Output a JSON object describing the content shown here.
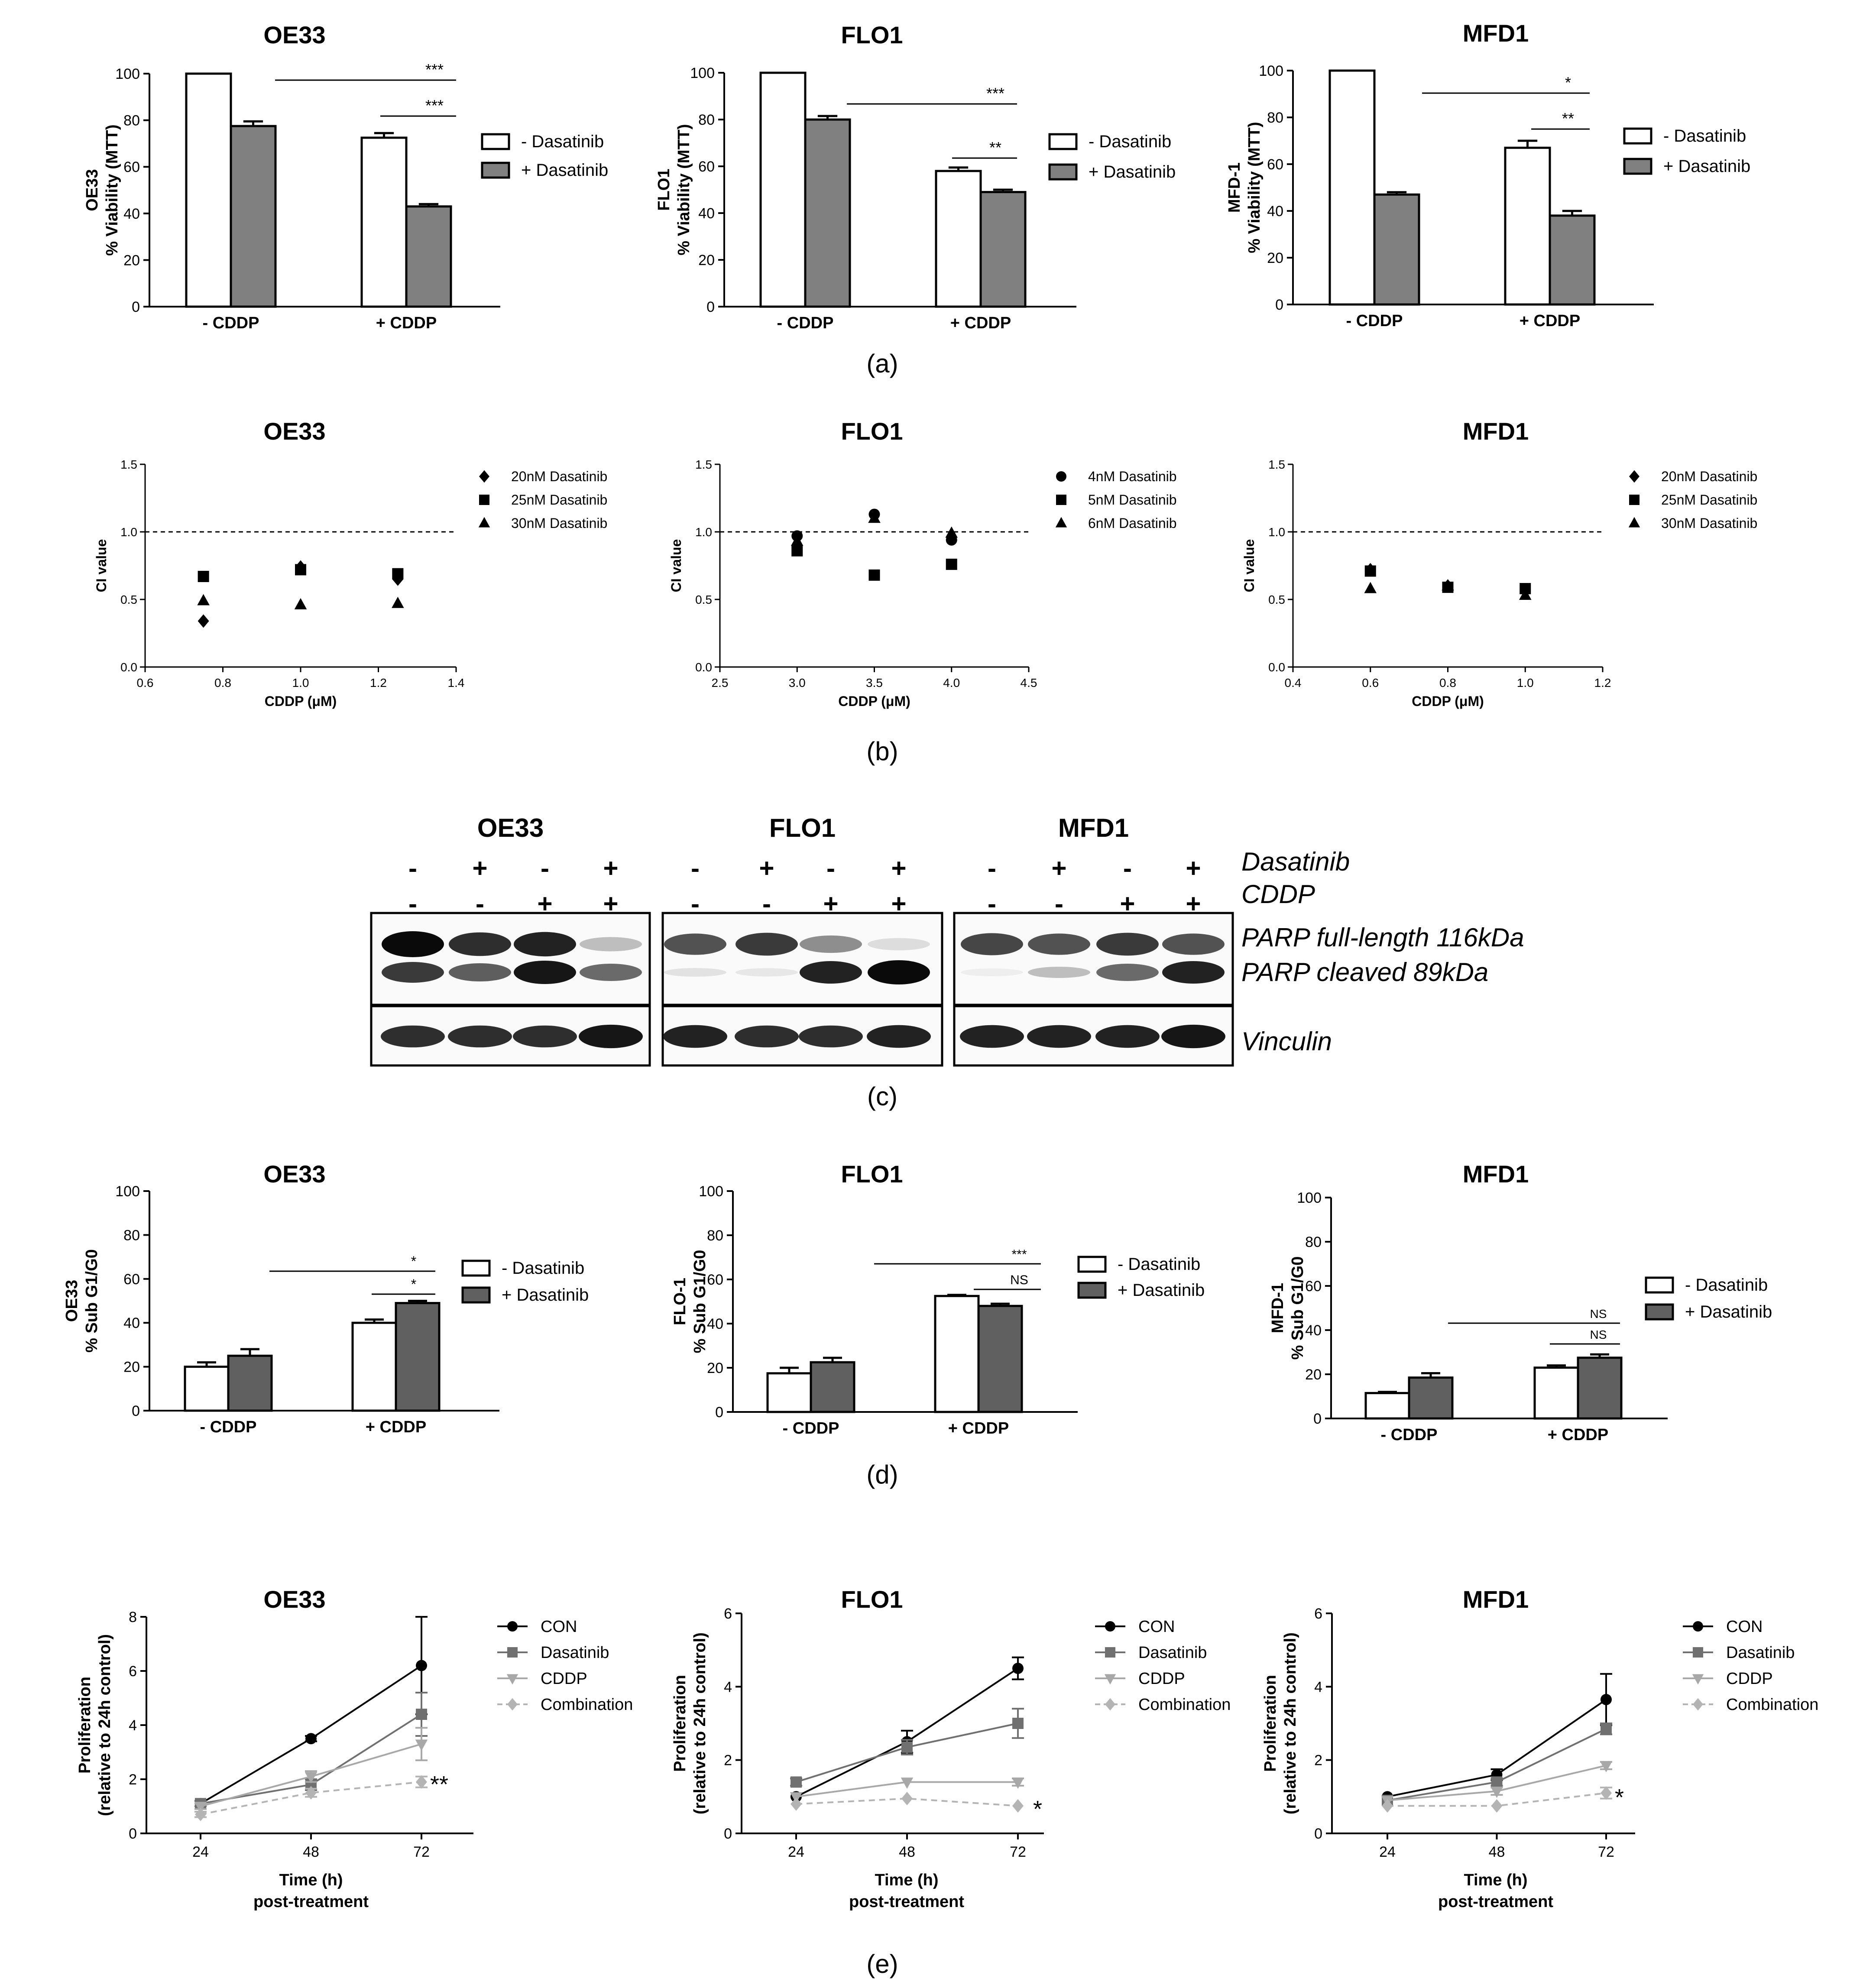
{
  "panel_labels": [
    "(a)",
    "(b)",
    "(c)",
    "(d)",
    "(e)"
  ],
  "chart_data": [
    {
      "id": "a_oe33",
      "type": "bar",
      "title": "OE33",
      "ylabel": [
        "OE33",
        "% Viability (MTT)"
      ],
      "ylim": [
        0,
        100
      ],
      "yticks": [
        0,
        20,
        40,
        60,
        80,
        100
      ],
      "categories": [
        "- CDDP",
        "+ CDDP"
      ],
      "series": [
        {
          "name": "- Dasatinib",
          "color": "#ffffff",
          "values": [
            100,
            72.5
          ],
          "errors": [
            0,
            2
          ]
        },
        {
          "name": "+ Dasatinib",
          "color": "#808080",
          "values": [
            77.5,
            43
          ],
          "errors": [
            2,
            1
          ]
        }
      ],
      "annotations": [
        "***",
        "***"
      ]
    },
    {
      "id": "a_flo1",
      "type": "bar",
      "title": "FLO1",
      "ylabel": [
        "FLO1",
        "% Viability (MTT)"
      ],
      "ylim": [
        0,
        100
      ],
      "yticks": [
        0,
        20,
        40,
        60,
        80,
        100
      ],
      "categories": [
        "- CDDP",
        "+ CDDP"
      ],
      "series": [
        {
          "name": "- Dasatinib",
          "color": "#ffffff",
          "values": [
            100,
            58
          ],
          "errors": [
            0,
            1.5
          ]
        },
        {
          "name": "+ Dasatinib",
          "color": "#808080",
          "values": [
            80,
            49
          ],
          "errors": [
            1.5,
            1
          ]
        }
      ],
      "annotations": [
        "***",
        "**"
      ]
    },
    {
      "id": "a_mfd1",
      "type": "bar",
      "title": "MFD1",
      "ylabel": [
        "MFD-1",
        "% Viability (MTT)"
      ],
      "ylim": [
        0,
        100
      ],
      "yticks": [
        0,
        20,
        40,
        60,
        80,
        100
      ],
      "categories": [
        "- CDDP",
        "+ CDDP"
      ],
      "series": [
        {
          "name": "- Dasatinib",
          "color": "#ffffff",
          "values": [
            100,
            67
          ],
          "errors": [
            0,
            3
          ]
        },
        {
          "name": "+ Dasatinib",
          "color": "#808080",
          "values": [
            47,
            38
          ],
          "errors": [
            1,
            2
          ]
        }
      ],
      "annotations": [
        "*",
        "**"
      ]
    },
    {
      "id": "b_oe33",
      "type": "scatter",
      "title": "OE33",
      "xlabel": "CDDP (μM)",
      "ylabel": "CI value",
      "xlim": [
        0.6,
        1.4
      ],
      "xticks": [
        "0.6",
        "0.8",
        "1.0",
        "1.2",
        "1.4"
      ],
      "ylim": [
        0,
        1.5
      ],
      "yticks": [
        "0.0",
        "0.5",
        "1.0",
        "1.5"
      ],
      "reference_line": 1.0,
      "series": [
        {
          "name": "20nM Dasatinib",
          "marker": "diamond",
          "points": [
            [
              0.75,
              0.34
            ],
            [
              1.0,
              0.74
            ],
            [
              1.25,
              0.65
            ]
          ]
        },
        {
          "name": "25nM Dasatinib",
          "marker": "square",
          "points": [
            [
              0.75,
              0.67
            ],
            [
              1.0,
              0.72
            ],
            [
              1.25,
              0.69
            ]
          ]
        },
        {
          "name": "30nM Dasatinib",
          "marker": "triangle",
          "points": [
            [
              0.75,
              0.49
            ],
            [
              1.0,
              0.46
            ],
            [
              1.25,
              0.47
            ]
          ]
        }
      ]
    },
    {
      "id": "b_flo1",
      "type": "scatter",
      "title": "FLO1",
      "xlabel": "CDDP (μM)",
      "ylabel": "CI value",
      "xlim": [
        2.5,
        4.5
      ],
      "xticks": [
        "2.5",
        "3.0",
        "3.5",
        "4.0",
        "4.5"
      ],
      "ylim": [
        0,
        1.5
      ],
      "yticks": [
        "0.0",
        "0.5",
        "1.0",
        "1.5"
      ],
      "reference_line": 1.0,
      "series": [
        {
          "name": "4nM Dasatinib",
          "marker": "circle",
          "points": [
            [
              3.0,
              0.97
            ],
            [
              3.5,
              1.13
            ],
            [
              4.0,
              0.94
            ]
          ]
        },
        {
          "name": "5nM Dasatinib",
          "marker": "square",
          "points": [
            [
              3.0,
              0.86
            ],
            [
              3.5,
              0.68
            ],
            [
              4.0,
              0.76
            ]
          ]
        },
        {
          "name": "6nM Dasatinib",
          "marker": "triangle",
          "points": [
            [
              3.0,
              0.93
            ],
            [
              3.5,
              1.1
            ],
            [
              4.0,
              0.99
            ]
          ]
        }
      ]
    },
    {
      "id": "b_mfd1",
      "type": "scatter",
      "title": "MFD1",
      "xlabel": "CDDP (μM)",
      "ylabel": "CI value",
      "xlim": [
        0.4,
        1.2
      ],
      "xticks": [
        "0.4",
        "0.6",
        "0.8",
        "1.0",
        "1.2"
      ],
      "ylim": [
        0,
        1.5
      ],
      "yticks": [
        "0.0",
        "0.5",
        "1.0",
        "1.5"
      ],
      "reference_line": 1.0,
      "series": [
        {
          "name": "20nM Dasatinib",
          "marker": "diamond",
          "points": [
            [
              0.6,
              0.72
            ],
            [
              0.8,
              0.6
            ],
            [
              1.0,
              0.57
            ]
          ]
        },
        {
          "name": "25nM Dasatinib",
          "marker": "square",
          "points": [
            [
              0.6,
              0.71
            ],
            [
              0.8,
              0.59
            ],
            [
              1.0,
              0.58
            ]
          ]
        },
        {
          "name": "30nM Dasatinib",
          "marker": "triangle",
          "points": [
            [
              0.6,
              0.58
            ],
            [
              0.8,
              0.6
            ],
            [
              1.0,
              0.53
            ]
          ]
        }
      ]
    },
    {
      "id": "d_oe33",
      "type": "bar",
      "title": "OE33",
      "ylabel": [
        "OE33",
        "% Sub G1/G0"
      ],
      "ylim": [
        0,
        100
      ],
      "yticks": [
        0,
        20,
        40,
        60,
        80,
        100
      ],
      "categories": [
        "- CDDP",
        "+ CDDP"
      ],
      "series": [
        {
          "name": "- Dasatinib",
          "color": "#ffffff",
          "values": [
            20,
            40
          ],
          "errors": [
            2,
            1.5
          ]
        },
        {
          "name": "+ Dasatinib",
          "color": "#606060",
          "values": [
            25,
            49
          ],
          "errors": [
            3,
            1
          ]
        }
      ],
      "annotations": [
        "*",
        "*"
      ]
    },
    {
      "id": "d_flo1",
      "type": "bar",
      "title": "FLO1",
      "ylabel": [
        "FLO-1",
        "% Sub G1/G0"
      ],
      "ylim": [
        0,
        100
      ],
      "yticks": [
        0,
        20,
        40,
        60,
        80,
        100
      ],
      "categories": [
        "- CDDP",
        "+ CDDP"
      ],
      "series": [
        {
          "name": "- Dasatinib",
          "color": "#ffffff",
          "values": [
            17.5,
            52.5
          ],
          "errors": [
            2.5,
            0.5
          ]
        },
        {
          "name": "+ Dasatinib",
          "color": "#606060",
          "values": [
            22.5,
            48
          ],
          "errors": [
            2,
            1
          ]
        }
      ],
      "annotations": [
        "***",
        "NS"
      ]
    },
    {
      "id": "d_mfd1",
      "type": "bar",
      "title": "MFD1",
      "ylabel": [
        "MFD-1",
        "% Sub G1/G0"
      ],
      "ylim": [
        0,
        100
      ],
      "yticks": [
        0,
        20,
        40,
        60,
        80,
        100
      ],
      "categories": [
        "- CDDP",
        "+ CDDP"
      ],
      "series": [
        {
          "name": "- Dasatinib",
          "color": "#ffffff",
          "values": [
            11.5,
            23
          ],
          "errors": [
            0.5,
            1
          ]
        },
        {
          "name": "+ Dasatinib",
          "color": "#606060",
          "values": [
            18.5,
            27.5
          ],
          "errors": [
            2,
            1.5
          ]
        }
      ],
      "annotations": [
        "NS",
        "NS"
      ]
    },
    {
      "id": "e_oe33",
      "type": "line",
      "title": "OE33",
      "xlabel": [
        "Time (h)",
        "post-treatment"
      ],
      "ylabel": [
        "Proliferation",
        "(relative to 24h control)"
      ],
      "x": [
        24,
        48,
        72
      ],
      "ylim": [
        0,
        8
      ],
      "yticks": [
        0,
        2,
        4,
        6,
        8
      ],
      "series": [
        {
          "name": "CON",
          "color": "#000000",
          "marker": "circle",
          "dashed": false,
          "values": [
            1.1,
            3.5,
            6.2
          ],
          "errors": [
            0.05,
            0.1,
            1.8
          ]
        },
        {
          "name": "Dasatinib",
          "color": "#707070",
          "marker": "square",
          "dashed": false,
          "values": [
            1.1,
            1.8,
            4.4
          ],
          "errors": [
            0.1,
            0.2,
            0.8
          ]
        },
        {
          "name": "CDDP",
          "color": "#a8a8a8",
          "marker": "triangle-down",
          "dashed": false,
          "values": [
            1.0,
            2.1,
            3.3
          ],
          "errors": [
            0.1,
            0.2,
            0.6
          ]
        },
        {
          "name": "Combination",
          "color": "#b4b4b4",
          "marker": "diamond",
          "dashed": true,
          "values": [
            0.7,
            1.5,
            1.9
          ],
          "errors": [
            0.1,
            0.15,
            0.2
          ]
        }
      ],
      "annotation": "**"
    },
    {
      "id": "e_flo1",
      "type": "line",
      "title": "FLO1",
      "xlabel": [
        "Time (h)",
        "post-treatment"
      ],
      "ylabel": [
        "Proliferation",
        "(relative to 24h control)"
      ],
      "x": [
        24,
        48,
        72
      ],
      "ylim": [
        0,
        6
      ],
      "yticks": [
        0,
        2,
        4,
        6
      ],
      "series": [
        {
          "name": "CON",
          "color": "#000000",
          "marker": "circle",
          "dashed": false,
          "values": [
            1.0,
            2.5,
            4.5
          ],
          "errors": [
            0.05,
            0.3,
            0.3
          ]
        },
        {
          "name": "Dasatinib",
          "color": "#707070",
          "marker": "square",
          "dashed": false,
          "values": [
            1.4,
            2.35,
            3.0
          ],
          "errors": [
            0.1,
            0.2,
            0.4
          ]
        },
        {
          "name": "CDDP",
          "color": "#a8a8a8",
          "marker": "triangle-down",
          "dashed": false,
          "values": [
            1.0,
            1.4,
            1.4
          ],
          "errors": [
            0.05,
            0.05,
            0.1
          ]
        },
        {
          "name": "Combination",
          "color": "#b4b4b4",
          "marker": "diamond",
          "dashed": true,
          "values": [
            0.8,
            0.95,
            0.75
          ],
          "errors": [
            0.05,
            0.05,
            0.05
          ]
        }
      ],
      "annotation": "*"
    },
    {
      "id": "e_mfd1",
      "type": "line",
      "title": "MFD1",
      "xlabel": [
        "Time (h)",
        "post-treatment"
      ],
      "ylabel": [
        "Proliferation",
        "(relative to 24h control)"
      ],
      "x": [
        24,
        48,
        72
      ],
      "ylim": [
        0,
        6
      ],
      "yticks": [
        0,
        2,
        4,
        6
      ],
      "series": [
        {
          "name": "CON",
          "color": "#000000",
          "marker": "circle",
          "dashed": false,
          "values": [
            1.0,
            1.6,
            3.65
          ],
          "errors": [
            0.05,
            0.15,
            0.7
          ]
        },
        {
          "name": "Dasatinib",
          "color": "#707070",
          "marker": "square",
          "dashed": false,
          "values": [
            0.9,
            1.4,
            2.85
          ],
          "errors": [
            0.05,
            0.1,
            0.15
          ]
        },
        {
          "name": "CDDP",
          "color": "#a8a8a8",
          "marker": "triangle-down",
          "dashed": false,
          "values": [
            0.9,
            1.15,
            1.85
          ],
          "errors": [
            0.05,
            0.1,
            0.1
          ]
        },
        {
          "name": "Combination",
          "color": "#b4b4b4",
          "marker": "diamond",
          "dashed": true,
          "values": [
            0.75,
            0.75,
            1.1
          ],
          "errors": [
            0.05,
            0.05,
            0.15
          ]
        }
      ],
      "annotation": "*"
    }
  ],
  "blot": {
    "cell_lines": [
      "OE33",
      "FLO1",
      "MFD1"
    ],
    "treatment_labels": [
      "Dasatinib",
      "CDDP"
    ],
    "dasatinib_signs": [
      "-",
      "+",
      "-",
      "+"
    ],
    "cddp_signs": [
      "-",
      "-",
      "+",
      "+"
    ],
    "protein_labels": [
      "PARP full-length 116kDa",
      "PARP cleaved 89kDa",
      "Vinculin"
    ],
    "parp_full_intensity": [
      [
        1.0,
        0.85,
        0.9,
        0.25
      ],
      [
        0.7,
        0.8,
        0.45,
        0.12
      ],
      [
        0.75,
        0.7,
        0.8,
        0.7
      ]
    ],
    "parp_cleaved_intensity": [
      [
        0.8,
        0.65,
        0.95,
        0.6
      ],
      [
        0.1,
        0.08,
        0.9,
        1.0
      ],
      [
        0.05,
        0.25,
        0.6,
        0.9
      ]
    ],
    "vinculin_intensity": [
      [
        0.85,
        0.85,
        0.85,
        0.95
      ],
      [
        0.9,
        0.85,
        0.85,
        0.9
      ],
      [
        0.9,
        0.9,
        0.9,
        0.95
      ]
    ]
  }
}
